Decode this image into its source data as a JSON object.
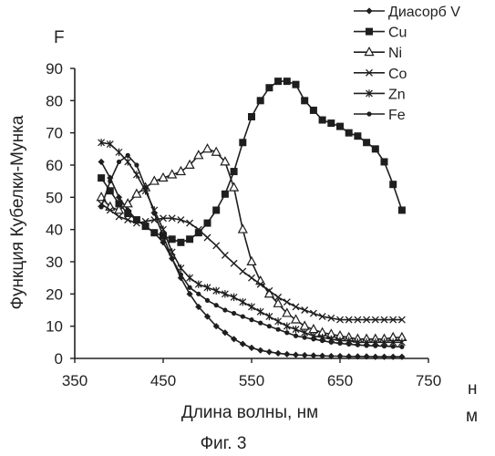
{
  "chart_data": {
    "type": "line",
    "xlabel": "Длина волны, нм",
    "ylabel": "Функция Кубелки-Мунка",
    "y_axis_symbol": "F",
    "x_unit_label": [
      "н",
      "м"
    ],
    "caption": "Фиг. 3",
    "xlim": [
      350,
      750
    ],
    "ylim": [
      0,
      90
    ],
    "x_ticks": [
      350,
      450,
      550,
      650,
      750
    ],
    "y_ticks": [
      0,
      10,
      20,
      30,
      40,
      50,
      60,
      70,
      80,
      90
    ],
    "grid": false,
    "legend": "top-right",
    "series": [
      {
        "name": "Диасорб V",
        "marker": "diamond",
        "x": [
          380,
          390,
          400,
          410,
          420,
          430,
          440,
          450,
          460,
          470,
          480,
          490,
          500,
          510,
          520,
          530,
          540,
          550,
          560,
          570,
          580,
          590,
          600,
          610,
          620,
          630,
          640,
          650,
          660,
          670,
          680,
          690,
          700,
          710,
          720
        ],
        "y": [
          61,
          56,
          50,
          46,
          43,
          41,
          39,
          36,
          31,
          25,
          20,
          16,
          13,
          10,
          8,
          6,
          4.5,
          3.3,
          2.5,
          2,
          1.6,
          1.3,
          1.1,
          1,
          0.9,
          0.8,
          0.7,
          0.7,
          0.6,
          0.6,
          0.6,
          0.5,
          0.5,
          0.5,
          0.5
        ]
      },
      {
        "name": "Cu",
        "marker": "square",
        "x": [
          380,
          390,
          400,
          410,
          420,
          430,
          440,
          450,
          460,
          470,
          480,
          490,
          500,
          510,
          520,
          530,
          540,
          550,
          560,
          570,
          580,
          590,
          600,
          610,
          620,
          630,
          640,
          650,
          660,
          670,
          680,
          690,
          700,
          710,
          720
        ],
        "y": [
          56,
          52,
          48,
          45,
          43,
          41,
          39,
          38,
          37,
          36,
          37,
          39,
          42,
          46,
          51,
          58,
          67,
          75,
          80,
          84,
          86,
          86,
          85,
          80,
          77,
          74,
          73,
          72,
          70,
          69,
          67,
          65,
          61,
          54,
          46
        ]
      },
      {
        "name": "Ni",
        "marker": "triangle",
        "x": [
          380,
          390,
          400,
          410,
          420,
          430,
          440,
          450,
          460,
          470,
          480,
          490,
          500,
          510,
          520,
          530,
          540,
          550,
          560,
          570,
          580,
          590,
          600,
          610,
          620,
          630,
          640,
          650,
          660,
          670,
          680,
          690,
          700,
          710,
          720
        ],
        "y": [
          50,
          47,
          46,
          48,
          51,
          53,
          55,
          56,
          57,
          58,
          60,
          63,
          65,
          64,
          61,
          53,
          40,
          30,
          24,
          20,
          17,
          14,
          12,
          10,
          9,
          8,
          7.5,
          7,
          6.5,
          6,
          6,
          6,
          6,
          6.5,
          6.5
        ]
      },
      {
        "name": "Co",
        "marker": "x",
        "x": [
          380,
          390,
          400,
          410,
          420,
          430,
          440,
          450,
          460,
          470,
          480,
          490,
          500,
          510,
          520,
          530,
          540,
          550,
          560,
          570,
          580,
          590,
          600,
          610,
          620,
          630,
          640,
          650,
          660,
          670,
          680,
          690,
          700,
          710,
          720
        ],
        "y": [
          48,
          46,
          44,
          43,
          42,
          42.5,
          43,
          43.5,
          43.5,
          43,
          42,
          40,
          37.5,
          35,
          32,
          29.5,
          27,
          25,
          23,
          21,
          19,
          17.5,
          16,
          15,
          14,
          13,
          12.5,
          12,
          12,
          12,
          12,
          12,
          12,
          12,
          12
        ]
      },
      {
        "name": "Zn",
        "marker": "asterisk",
        "x": [
          380,
          390,
          400,
          410,
          420,
          430,
          440,
          450,
          460,
          470,
          480,
          490,
          500,
          510,
          520,
          530,
          540,
          550,
          560,
          570,
          580,
          590,
          600,
          610,
          620,
          630,
          640,
          650,
          660,
          670,
          680,
          690,
          700,
          710,
          720
        ],
        "y": [
          67,
          66.5,
          64,
          61,
          57,
          52,
          46,
          40,
          33,
          28,
          25,
          23,
          22,
          21,
          20,
          19,
          17.5,
          16,
          14.5,
          13,
          11.5,
          10,
          9,
          8,
          7,
          6.5,
          6,
          5.5,
          5.5,
          5,
          5,
          5,
          5,
          5,
          5
        ]
      },
      {
        "name": "Fe",
        "marker": "dot",
        "x": [
          380,
          390,
          400,
          410,
          420,
          430,
          440,
          450,
          460,
          470,
          480,
          490,
          500,
          510,
          520,
          530,
          540,
          550,
          560,
          570,
          580,
          590,
          600,
          610,
          620,
          630,
          640,
          650,
          660,
          670,
          680,
          690,
          700,
          710,
          720
        ],
        "y": [
          47,
          55,
          61,
          63,
          60,
          53,
          45,
          38,
          31,
          26,
          22,
          20,
          18,
          16.5,
          15,
          14,
          13,
          12,
          11,
          10,
          9,
          8,
          7,
          6.5,
          6,
          5.5,
          5,
          4.7,
          4.4,
          4.2,
          4,
          3.9,
          3.8,
          3.7,
          3.6
        ]
      }
    ]
  }
}
